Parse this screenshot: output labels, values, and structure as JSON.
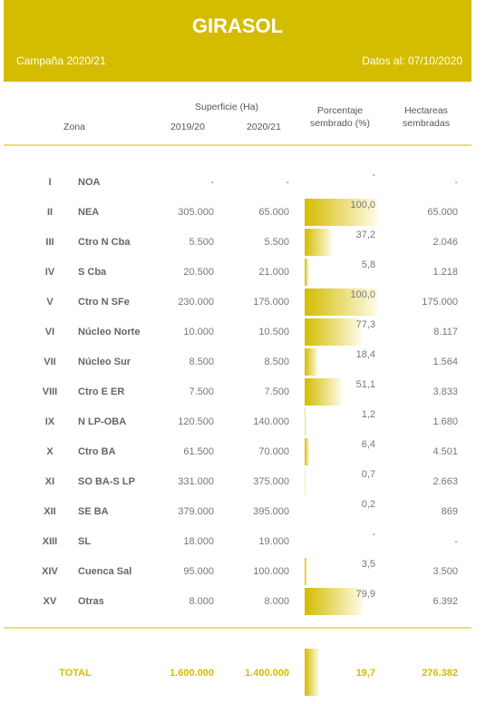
{
  "header": {
    "title": "GIRASOL",
    "campaign": "Campaña 2020/21",
    "date": "Datos al: 07/10/2020"
  },
  "table": {
    "columns": {
      "group": "Superficie (Ha)",
      "zone": "Zona",
      "s1920": "2019/20",
      "s2021": "2020/21",
      "pct": [
        "Porcentaje",
        "sembrado (%)"
      ],
      "ha": [
        "Hectareas",
        "sembradas"
      ]
    },
    "rows": [
      {
        "num": "I",
        "zone": "NOA",
        "s1920": "-",
        "s2021": "-",
        "pct": {
          "value": null,
          "label": "-"
        },
        "ha": "-"
      },
      {
        "num": "II",
        "zone": "NEA",
        "s1920": "305.000",
        "s2021": "65.000",
        "pct": {
          "value": 100.0,
          "label": "100,0"
        },
        "ha": "65.000"
      },
      {
        "num": "III",
        "zone": "Ctro N Cba",
        "s1920": "5.500",
        "s2021": "5.500",
        "pct": {
          "value": 37.2,
          "label": "37,2"
        },
        "ha": "2.046"
      },
      {
        "num": "IV",
        "zone": "S Cba",
        "s1920": "20.500",
        "s2021": "21.000",
        "pct": {
          "value": 5.8,
          "label": "5,8"
        },
        "ha": "1.218"
      },
      {
        "num": "V",
        "zone": "Ctro N SFe",
        "s1920": "230.000",
        "s2021": "175.000",
        "pct": {
          "value": 100.0,
          "label": "100,0"
        },
        "ha": "175.000"
      },
      {
        "num": "VI",
        "zone": "Núcleo Norte",
        "s1920": "10.000",
        "s2021": "10.500",
        "pct": {
          "value": 77.3,
          "label": "77,3"
        },
        "ha": "8.117"
      },
      {
        "num": "VII",
        "zone": "Núcleo Sur",
        "s1920": "8.500",
        "s2021": "8.500",
        "pct": {
          "value": 18.4,
          "label": "18,4"
        },
        "ha": "1.564"
      },
      {
        "num": "VIII",
        "zone": "Ctro E ER",
        "s1920": "7.500",
        "s2021": "7.500",
        "pct": {
          "value": 51.1,
          "label": "51,1"
        },
        "ha": "3.833"
      },
      {
        "num": "IX",
        "zone": "N LP-OBA",
        "s1920": "120.500",
        "s2021": "140.000",
        "pct": {
          "value": 1.2,
          "label": "1,2"
        },
        "ha": "1.680"
      },
      {
        "num": "X",
        "zone": "Ctro BA",
        "s1920": "61.500",
        "s2021": "70.000",
        "pct": {
          "value": 6.4,
          "label": "6,4"
        },
        "ha": "4.501"
      },
      {
        "num": "XI",
        "zone": "SO BA-S LP",
        "s1920": "331.000",
        "s2021": "375.000",
        "pct": {
          "value": 0.7,
          "label": "0,7"
        },
        "ha": "2.663"
      },
      {
        "num": "XII",
        "zone": "SE BA",
        "s1920": "379.000",
        "s2021": "395.000",
        "pct": {
          "value": 0.2,
          "label": "0,2"
        },
        "ha": "869"
      },
      {
        "num": "XIII",
        "zone": "SL",
        "s1920": "18.000",
        "s2021": "19.000",
        "pct": {
          "value": null,
          "label": "-"
        },
        "ha": "-"
      },
      {
        "num": "XIV",
        "zone": "Cuenca Sal",
        "s1920": "95.000",
        "s2021": "100.000",
        "pct": {
          "value": 3.5,
          "label": "3,5"
        },
        "ha": "3.500"
      },
      {
        "num": "XV",
        "zone": "Otras",
        "s1920": "8.000",
        "s2021": "8.000",
        "pct": {
          "value": 79.9,
          "label": "79,9"
        },
        "ha": "6.392"
      }
    ],
    "total": {
      "label": "TOTAL",
      "s1920": "1.600.000",
      "s2021": "1.400.000",
      "pct": {
        "value": 19.7,
        "label": "19,7"
      },
      "ha": "276.382"
    }
  }
}
